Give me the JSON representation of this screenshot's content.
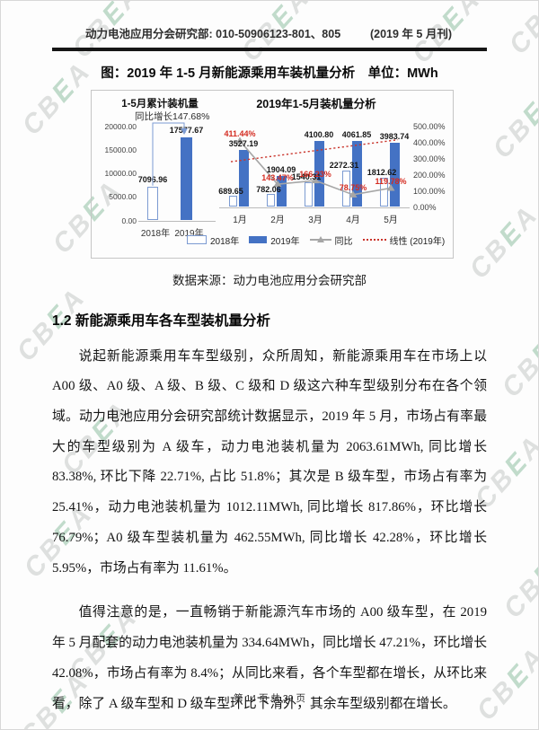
{
  "header": {
    "left": "动力电池应用分会研究部: 010-50906123-801、805",
    "right": "(2019 年 5 月刊)"
  },
  "figure": {
    "title": "图：2019 年 1-5 月新能源乘用车装机量分析　单位：MWh",
    "source": "数据来源：动力电池应用分会研究部"
  },
  "chart_data": [
    {
      "type": "bar",
      "title": "1-5月累计装机量",
      "subtitle": "同比增长147.68%",
      "categories": [
        "2018年",
        "2019年"
      ],
      "values": [
        7096.96,
        17577.67
      ],
      "value_labels": [
        "7096.96",
        "17577.67"
      ],
      "ylim": [
        0,
        20000
      ],
      "yticks": [
        "20000.00",
        "15000.00",
        "10000.00",
        "5000.00",
        "0.00"
      ],
      "grid": false
    },
    {
      "type": "bar",
      "subtype": "bar+line",
      "title": "2019年1-5月装机量分析",
      "categories": [
        "1月",
        "2月",
        "3月",
        "4月",
        "5月"
      ],
      "bar_axis_max": 5000,
      "series": [
        {
          "name": "2018年",
          "style": "outline-bar",
          "values": [
            689.65,
            782.06,
            1540.31,
            2272.31,
            1812.62
          ],
          "labels": [
            "689.65",
            "782.06",
            "1540.31",
            "2272.31",
            "1812.62"
          ]
        },
        {
          "name": "2019年",
          "style": "solid-bar",
          "values": [
            3527.19,
            1904.09,
            4100.8,
            4061.85,
            3983.74
          ],
          "labels": [
            "3527.19",
            "1904.09",
            "4100.80",
            "4061.85",
            "3983.74"
          ]
        },
        {
          "name": "同比",
          "style": "line",
          "axis": "percent",
          "values": [
            411.44,
            143.47,
            166.23,
            78.75,
            119.78
          ],
          "labels": [
            "411.44%",
            "143.47%",
            "166.23%",
            "78.75%",
            "119.78%"
          ]
        }
      ],
      "trendline": {
        "name": "线性 (2019年)",
        "of_series": "2019年"
      },
      "y2lim": [
        0,
        500
      ],
      "y2ticks": [
        "500.00%",
        "400.00%",
        "300.00%",
        "200.00%",
        "100.00%",
        "0.00%"
      ],
      "legend": [
        {
          "label": "2018年",
          "swatch": "outline"
        },
        {
          "label": "2019年",
          "swatch": "solid"
        },
        {
          "label": "同比",
          "swatch": "line"
        },
        {
          "label": "线性 (2019年)",
          "swatch": "dotted"
        }
      ],
      "legend_position": "bottom",
      "grid": false
    }
  ],
  "section": {
    "heading": "1.2 新能源乘用车各车型装机量分析"
  },
  "paragraphs": [
    "说起新能源乘用车车型级别，众所周知，新能源乘用车在市场上以 A00 级、A0 级、A 级、B 级、C 级和 D 级这六种车型级别分布在各个领域。动力电池应用分会研究部统计数据显示，2019 年 5 月，市场占有率最大的车型级别为 A 级车，动力电池装机量为 2063.61MWh, 同比增长 83.38%, 环比下降 22.71%, 占比 51.8%；其次是 B 级车型，市场占有率为 25.41%，动力电池装机量为 1012.11MWh, 同比增长 817.86%，环比增长 76.79%；A0 级车型装机量为 462.55MWh, 同比增长 42.28%，环比增长 5.95%，市场占有率为 11.61%。",
    "值得注意的是，一直畅销于新能源汽车市场的 A00 级车型，在 2019 年 5 月配套的动力电池装机量为 334.64MWh，同比增长 47.21%，环比增长 42.08%，市场占有率为 8.4%；从同比来看，各个车型都在增长，从环比来看，除了 A 级车型和 D 级车型环比下滑外，其余车型级别都在增长。"
  ],
  "footer": {
    "page_indicator": "第 14 页 共 39 页"
  },
  "watermark": {
    "text": "CBEA"
  },
  "colors": {
    "accent_blue": "#4472C4",
    "outline_bar_border": "#7C9BD2",
    "yoy_line_gray": "#A6A6A6",
    "red_labels": "#D42B20",
    "trend_red": "#C9342B",
    "wm_gray": "#d9dcda",
    "wm_green": "#b7d6c3"
  }
}
